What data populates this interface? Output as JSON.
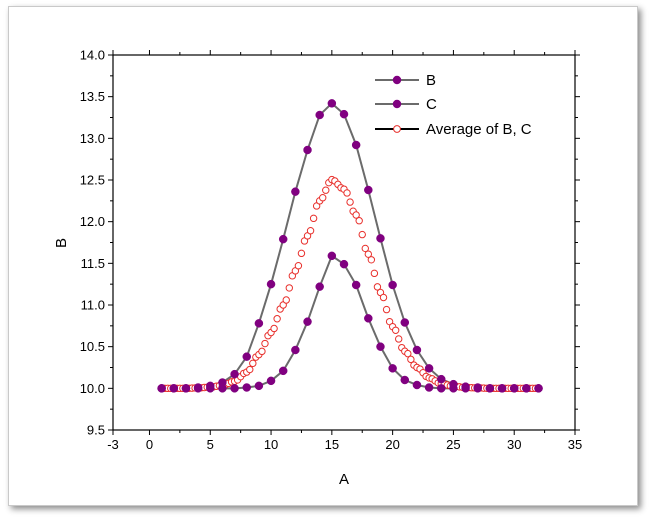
{
  "chart_data": {
    "type": "line",
    "title": "",
    "xlabel": "A",
    "ylabel": "B",
    "xlim": [
      -3,
      35
    ],
    "ylim": [
      9.5,
      14.0
    ],
    "xticks": [
      -3,
      0,
      5,
      10,
      15,
      20,
      25,
      30,
      35
    ],
    "xtick_labels": [
      "-3",
      "0",
      "5",
      "10",
      "15",
      "20",
      "25",
      "30",
      "35"
    ],
    "yticks": [
      9.5,
      10.0,
      10.5,
      11.0,
      11.5,
      12.0,
      12.5,
      13.0,
      13.5,
      14.0
    ],
    "ytick_labels": [
      "9.5",
      "10.0",
      "10.5",
      "11.0",
      "11.5",
      "12.0",
      "12.5",
      "13.0",
      "13.5",
      "14.0"
    ],
    "grid": false,
    "legend_position": "top-right",
    "series": [
      {
        "name": "B",
        "marker": "filled-circle",
        "line_color": "#6b6b6b",
        "marker_color": "#800080",
        "x": [
          1,
          2,
          3,
          4,
          5,
          6,
          7,
          8,
          9,
          10,
          11,
          12,
          13,
          14,
          15,
          16,
          17,
          18,
          19,
          20,
          21,
          22,
          23,
          24,
          25,
          26,
          27,
          28,
          29,
          30,
          31,
          32
        ],
        "y": [
          10.0,
          10.0,
          10.0,
          10.0,
          10.0,
          10.0,
          10.0,
          10.01,
          10.03,
          10.09,
          10.21,
          10.46,
          10.8,
          11.22,
          11.59,
          11.49,
          11.24,
          10.84,
          10.5,
          10.24,
          10.1,
          10.04,
          10.01,
          10.0,
          10.0,
          10.0,
          10.0,
          10.0,
          10.0,
          10.0,
          10.0,
          10.0
        ]
      },
      {
        "name": "C",
        "marker": "filled-circle",
        "line_color": "#6b6b6b",
        "marker_color": "#800080",
        "x": [
          1,
          2,
          3,
          4,
          5,
          6,
          7,
          8,
          9,
          10,
          11,
          12,
          13,
          14,
          15,
          16,
          17,
          18,
          19,
          20,
          21,
          22,
          23,
          24,
          25,
          26,
          27,
          28,
          29,
          30,
          31,
          32
        ],
        "y": [
          10.0,
          10.0,
          10.0,
          10.01,
          10.03,
          10.07,
          10.17,
          10.38,
          10.78,
          11.25,
          11.79,
          12.36,
          12.86,
          13.28,
          13.42,
          13.29,
          12.92,
          12.38,
          11.8,
          11.24,
          10.79,
          10.46,
          10.24,
          10.11,
          10.05,
          10.02,
          10.01,
          10.0,
          10.0,
          10.0,
          10.0,
          10.0
        ]
      },
      {
        "name": "Average of B, C",
        "marker": "open-circle",
        "line_color": "#000000",
        "marker_color": "#e8302c",
        "x_range": [
          1,
          32
        ],
        "samples": 125,
        "peak_x": 15.0,
        "peak_y": 12.5,
        "baseline_y": 10.0
      }
    ]
  }
}
